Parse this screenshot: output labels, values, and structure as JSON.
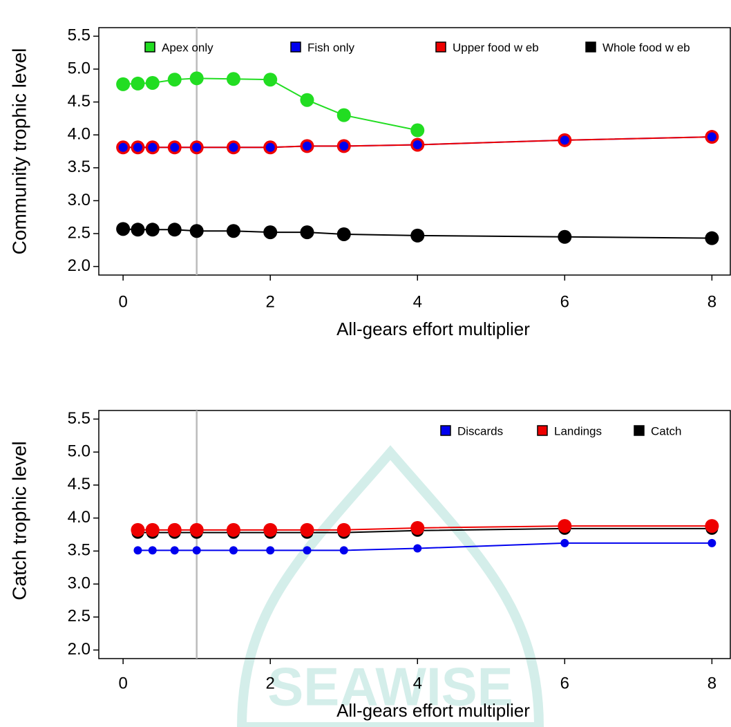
{
  "watermark": "SEAWISE",
  "chart_data": [
    {
      "type": "line",
      "y_label": "Community trophic level",
      "x_label": "All-gears effort multiplier",
      "x": [
        0,
        0.2,
        0.4,
        0.7,
        1,
        1.5,
        2,
        2.5,
        3,
        4,
        6,
        8
      ],
      "series": [
        {
          "name": "Apex only",
          "color": "#22dd22",
          "values": [
            4.77,
            4.78,
            4.79,
            4.84,
            4.86,
            4.85,
            4.84,
            4.53,
            4.3,
            4.07,
            null,
            null
          ]
        },
        {
          "name": "Fish only",
          "color": "#0000ee",
          "values": [
            3.81,
            3.81,
            3.81,
            3.81,
            3.81,
            3.81,
            3.81,
            3.83,
            3.83,
            3.85,
            3.92,
            3.97
          ]
        },
        {
          "name": "Upper food w eb",
          "color": "#ee0000",
          "values": [
            3.81,
            3.81,
            3.81,
            3.81,
            3.81,
            3.81,
            3.81,
            3.83,
            3.83,
            3.85,
            3.92,
            3.97
          ]
        },
        {
          "name": "Whole food w eb",
          "color": "#000000",
          "values": [
            2.57,
            2.56,
            2.56,
            2.56,
            2.54,
            2.54,
            2.52,
            2.52,
            2.49,
            2.47,
            2.45,
            2.43
          ]
        }
      ],
      "xlim": [
        -0.33,
        8.25
      ],
      "ylim": [
        1.87,
        5.63
      ],
      "xticks": [
        0,
        2,
        4,
        6,
        8
      ],
      "yticks": [
        {
          "value": 2,
          "label": "2.0"
        },
        2.5,
        {
          "value": 3,
          "label": "3.0"
        },
        3.5,
        {
          "value": 4,
          "label": "4.0"
        },
        4.5,
        {
          "value": 5,
          "label": "5.0"
        },
        5.5
      ],
      "vline": 1,
      "vline_color": "#bbbbbb"
    },
    {
      "type": "line",
      "y_label": "Catch trophic level",
      "x_label": "All-gears effort multiplier",
      "x": [
        0.2,
        0.4,
        0.7,
        1,
        1.5,
        2,
        2.5,
        3,
        4,
        6,
        8
      ],
      "series": [
        {
          "name": "Discards",
          "color": "#0000ee",
          "values": [
            3.51,
            3.51,
            3.51,
            3.51,
            3.51,
            3.51,
            3.51,
            3.51,
            3.54,
            3.62,
            3.62
          ]
        },
        {
          "name": "Landings",
          "color": "#ee0000",
          "values": [
            3.82,
            3.82,
            3.82,
            3.82,
            3.82,
            3.82,
            3.82,
            3.82,
            3.85,
            3.88,
            3.88
          ]
        },
        {
          "name": "Catch",
          "color": "#000000",
          "values": [
            3.78,
            3.78,
            3.78,
            3.78,
            3.78,
            3.78,
            3.78,
            3.78,
            3.81,
            3.84,
            3.84
          ]
        }
      ],
      "xlim": [
        -0.33,
        8.25
      ],
      "ylim": [
        1.87,
        5.63
      ],
      "xticks": [
        0,
        2,
        4,
        6,
        8
      ],
      "yticks": [
        {
          "value": 2,
          "label": "2.0"
        },
        2.5,
        {
          "value": 3,
          "label": "3.0"
        },
        3.5,
        {
          "value": 4,
          "label": "4.0"
        },
        4.5,
        {
          "value": 5,
          "label": "5.0"
        },
        5.5
      ],
      "vline": 1,
      "vline_color": "#bbbbbb"
    }
  ]
}
